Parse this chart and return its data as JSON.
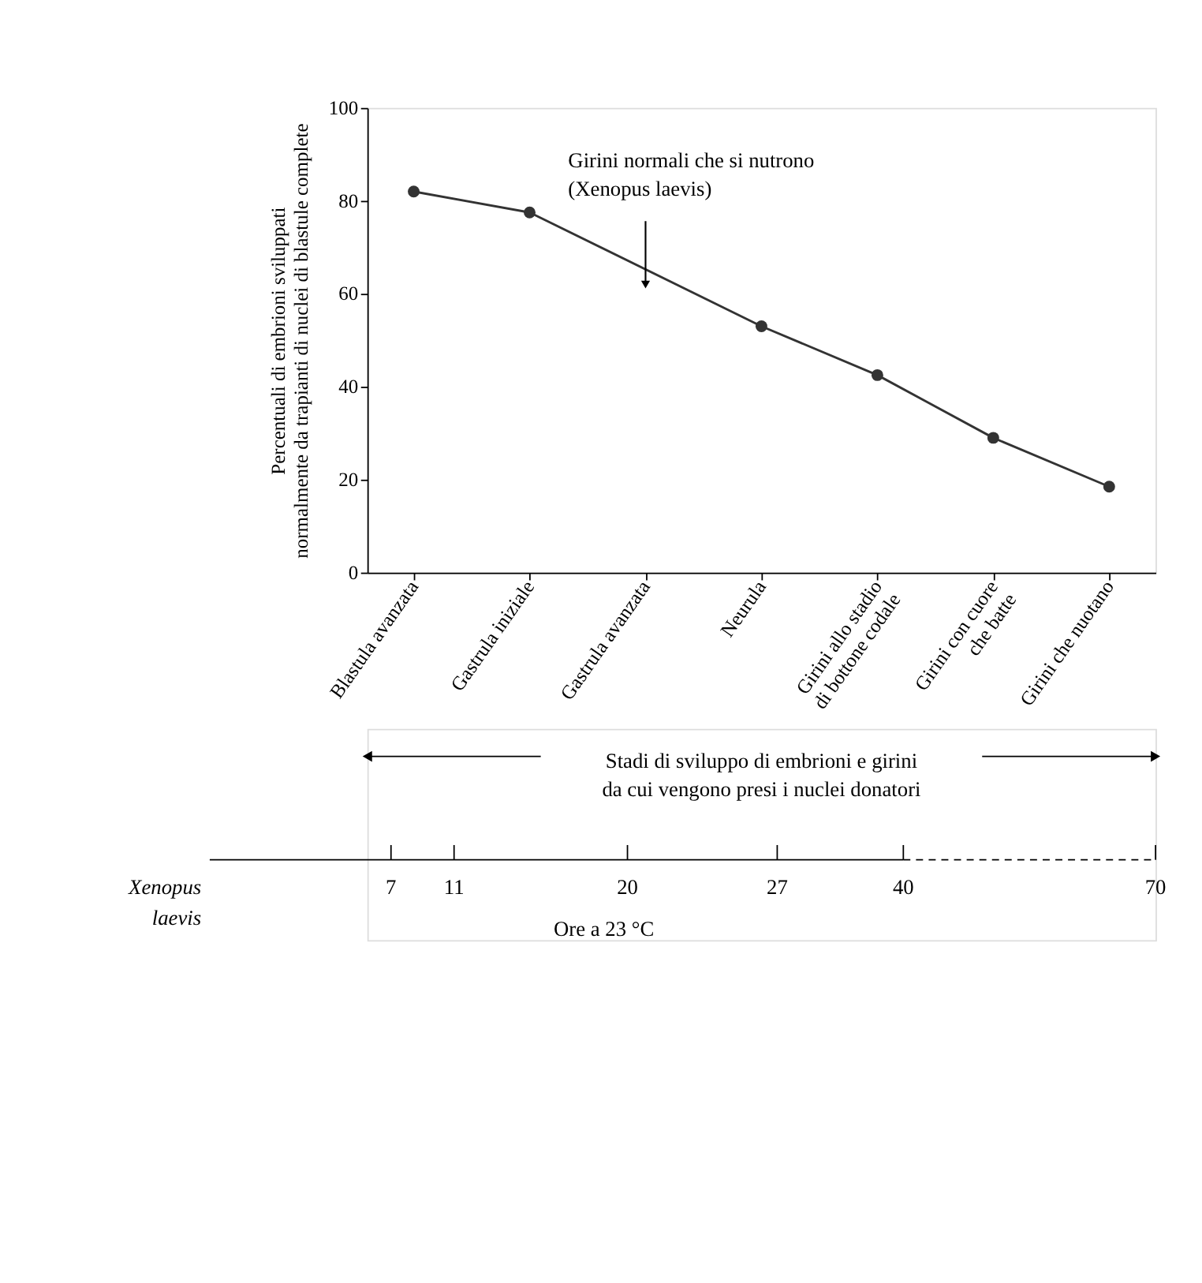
{
  "chart_data": {
    "type": "line",
    "ylabel": "Percentuali di embrioni sviluppati\nnormalmente da trapianti di nuclei di blastule complete",
    "xlabel": "Stadi di sviluppo di embrioni e girini\nda cui vengono presi i nuclei donatori",
    "categories": [
      "Blastula avanzata",
      "Gastrula iniziale",
      "Gastrula avanzata",
      "Neurula",
      "Girini allo stadio\ndi bottone codale",
      "Girini con cuore\nche batte",
      "Girini che nuotano"
    ],
    "series": [
      {
        "color": "#333333",
        "values": [
          82,
          77.5,
          null,
          53,
          42.5,
          29,
          18.5
        ]
      }
    ],
    "ylim": [
      0,
      100
    ],
    "yticks": [
      0,
      20,
      40,
      60,
      80,
      100
    ],
    "grid": false,
    "marker": "circle",
    "line_style": "solid",
    "annotations": [
      {
        "text": "Girini normali che si nutrono\n(Xenopus laevis)",
        "x": "Gastrula avanzata",
        "y": 62
      },
      "Xenopus laevis",
      "7",
      "11",
      "20",
      "27",
      "40",
      "70",
      "Ore a 23 °C"
    ]
  }
}
